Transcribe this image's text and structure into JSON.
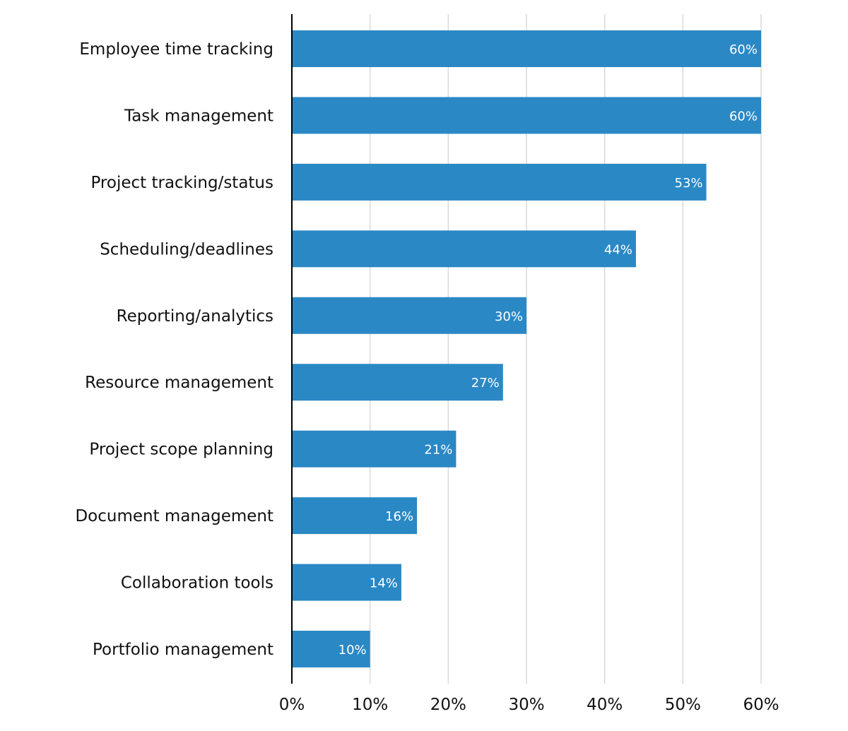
{
  "chart_data": {
    "type": "bar",
    "orientation": "horizontal",
    "title": "",
    "xlabel": "",
    "ylabel": "",
    "categories": [
      "Employee time tracking",
      "Task management",
      "Project tracking/status",
      "Scheduling/deadlines",
      "Reporting/analytics",
      "Resource management",
      "Project scope planning",
      "Document management",
      "Collaboration tools",
      "Portfolio management"
    ],
    "values": [
      60,
      60,
      53,
      44,
      30,
      27,
      21,
      16,
      14,
      10
    ],
    "data_labels": [
      "60%",
      "60%",
      "53%",
      "44%",
      "30%",
      "27%",
      "21%",
      "16%",
      "14%",
      "10%"
    ],
    "xlim": [
      0,
      60
    ],
    "xticks": [
      0,
      10,
      20,
      30,
      40,
      50,
      60
    ],
    "xtick_labels": [
      "0%",
      "10%",
      "20%",
      "30%",
      "40%",
      "50%",
      "60%"
    ],
    "grid": "vertical",
    "legend": "none",
    "colors": {
      "bar": "#2a88c5",
      "grid": "#d9d9d9",
      "axis": "#000000",
      "label_text": "#111111",
      "data_label_text": "#ffffff"
    }
  }
}
